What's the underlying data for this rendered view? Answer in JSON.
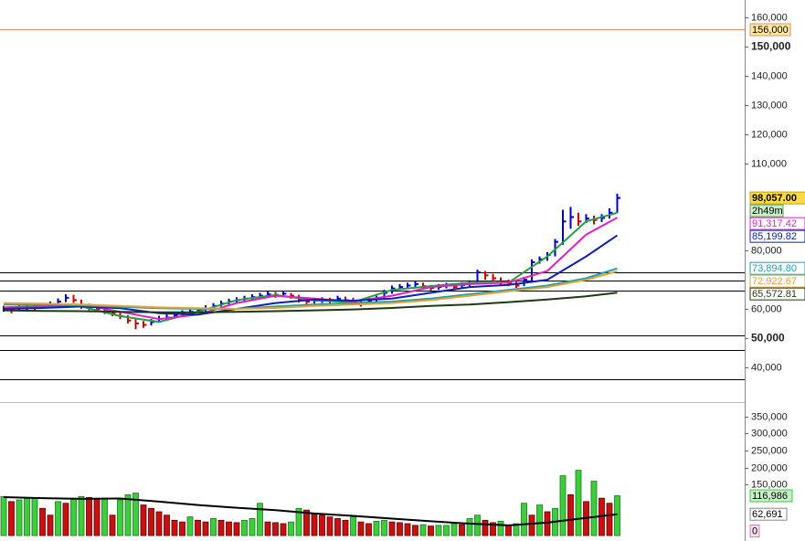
{
  "chart_data": [
    {
      "type": "ohlc",
      "ylim": [
        28000,
        166000
      ],
      "yticks": [
        {
          "value": 160000,
          "label": "160,000"
        },
        {
          "value": 150000,
          "label": "150,000"
        },
        {
          "value": 140000,
          "label": "140,000"
        },
        {
          "value": 130000,
          "label": "130,000"
        },
        {
          "value": 120000,
          "label": "120,000"
        },
        {
          "value": 110000,
          "label": "110,000"
        },
        {
          "value": 80000,
          "label": "80,000"
        },
        {
          "value": 60000,
          "label": "60,000"
        },
        {
          "value": 50000,
          "label": "50,000"
        },
        {
          "value": 40000,
          "label": "40,000"
        }
      ],
      "up_color": "#0000c8",
      "down_color": "#c80000",
      "high": [
        61000,
        60800,
        61200,
        61800,
        61500,
        62000,
        62500,
        63600,
        65000,
        64800,
        63200,
        61800,
        61200,
        60400,
        59600,
        58800,
        57800,
        56500,
        55800,
        56500,
        57600,
        58200,
        58800,
        59500,
        60000,
        60500,
        61200,
        62000,
        62800,
        63500,
        64000,
        64500,
        65000,
        65500,
        66000,
        65800,
        66200,
        65500,
        64800,
        63500,
        63800,
        64000,
        63800,
        64500,
        64200,
        63800,
        63000,
        63800,
        64500,
        66500,
        68000,
        68500,
        69000,
        69500,
        69000,
        68200,
        68500,
        69000,
        68500,
        69200,
        69800,
        73500,
        73000,
        72000,
        70800,
        70000,
        69500,
        71000,
        77000,
        78000,
        79500,
        84000,
        94000,
        95000,
        93000,
        92500,
        92000,
        92500,
        94500,
        99500
      ],
      "low": [
        59000,
        58500,
        59200,
        59500,
        59500,
        60000,
        60500,
        61200,
        62300,
        62000,
        60000,
        59500,
        59000,
        58200,
        57500,
        56500,
        55000,
        53000,
        53500,
        54300,
        55300,
        56200,
        56800,
        57500,
        58200,
        58700,
        59200,
        59800,
        60800,
        61500,
        62000,
        62500,
        63000,
        63500,
        64000,
        63800,
        64000,
        63500,
        62200,
        61500,
        61800,
        62000,
        61800,
        62500,
        62000,
        61500,
        60800,
        61600,
        62500,
        63500,
        65200,
        66400,
        67000,
        67500,
        66800,
        66300,
        66500,
        67000,
        66600,
        67200,
        67800,
        68500,
        70000,
        69500,
        68000,
        67800,
        67200,
        67800,
        69500,
        75500,
        76500,
        78000,
        82000,
        87500,
        88500,
        89500,
        89000,
        89800,
        91000,
        93000
      ],
      "close": [
        60000,
        59500,
        60200,
        60800,
        60300,
        61000,
        61500,
        62500,
        63800,
        63000,
        61000,
        60500,
        60000,
        59200,
        58500,
        57500,
        56000,
        55000,
        54500,
        55500,
        56500,
        57000,
        57800,
        58500,
        59000,
        59500,
        60000,
        61000,
        61800,
        62500,
        63000,
        63500,
        64000,
        64500,
        65000,
        64800,
        65200,
        64500,
        63000,
        62500,
        62800,
        63000,
        62700,
        63500,
        63000,
        62500,
        61800,
        62800,
        63500,
        65500,
        67000,
        67500,
        68000,
        68500,
        67800,
        67200,
        67500,
        68000,
        67500,
        68200,
        68800,
        72500,
        71500,
        70500,
        69000,
        68800,
        68000,
        70000,
        76000,
        77000,
        78500,
        83000,
        90000,
        91500,
        90000,
        91000,
        90500,
        91200,
        93000,
        98057
      ],
      "end_label": "98,057.00",
      "countdown": "2h49m",
      "alert": {
        "value": 156000,
        "label": "156,000"
      },
      "hlines": [
        72500,
        69700,
        66300,
        50900,
        45900,
        35900
      ],
      "series": [
        {
          "color": "#22a046",
          "x": [
            0,
            5,
            10,
            15,
            20,
            25,
            30,
            35,
            40,
            45,
            50,
            55,
            60,
            65,
            70,
            75,
            79
          ],
          "values": [
            60500,
            61000,
            60800,
            57500,
            55500,
            59000,
            63000,
            64800,
            62900,
            62300,
            66500,
            67800,
            69000,
            69000,
            78000,
            90000,
            93000
          ]
        },
        {
          "color": "#e020c0",
          "x": [
            0,
            5,
            10,
            15,
            20,
            25,
            30,
            35,
            40,
            45,
            50,
            55,
            60,
            65,
            70,
            75,
            79
          ],
          "values": [
            60300,
            60800,
            61500,
            59000,
            56500,
            58000,
            62000,
            64500,
            63500,
            62500,
            64500,
            67500,
            68500,
            69000,
            73000,
            85500,
            91317.42
          ],
          "end_label": "91,317.42"
        },
        {
          "color": "#1020b0",
          "x": [
            0,
            5,
            10,
            15,
            20,
            25,
            30,
            35,
            40,
            45,
            50,
            55,
            60,
            65,
            70,
            75,
            79
          ],
          "values": [
            60000,
            60300,
            60800,
            60200,
            58500,
            58000,
            60000,
            62000,
            63200,
            62800,
            63500,
            65500,
            67500,
            68200,
            70000,
            78000,
            85199.82
          ],
          "end_label": "85,199.82"
        },
        {
          "color": "#1aa0b0",
          "x": [
            0,
            5,
            10,
            15,
            20,
            25,
            30,
            35,
            40,
            45,
            50,
            55,
            60,
            65,
            70,
            75,
            79
          ],
          "values": [
            61500,
            61500,
            61200,
            60700,
            60200,
            60000,
            60000,
            60800,
            61500,
            62000,
            62500,
            63500,
            65000,
            66500,
            68000,
            70500,
            73894.8
          ],
          "end_label": "73,894.80"
        },
        {
          "color": "#e8a030",
          "x": [
            0,
            5,
            10,
            15,
            20,
            25,
            30,
            35,
            40,
            45,
            50,
            55,
            60,
            65,
            70,
            75,
            79
          ],
          "values": [
            62000,
            61800,
            61500,
            61000,
            60500,
            60200,
            60000,
            60300,
            61000,
            61500,
            62000,
            63000,
            64500,
            66000,
            67500,
            70000,
            72922.67
          ],
          "end_label": "72,922.67"
        },
        {
          "color": "#1e3a14",
          "x": [
            0,
            5,
            10,
            15,
            20,
            25,
            30,
            35,
            40,
            45,
            50,
            55,
            60,
            65,
            70,
            75,
            79
          ],
          "values": [
            59500,
            59300,
            59200,
            59000,
            58800,
            58800,
            59000,
            59200,
            59500,
            59800,
            60300,
            61000,
            61500,
            62300,
            63200,
            64300,
            65572.81
          ],
          "end_label": "65,572.81"
        }
      ]
    },
    {
      "type": "bar",
      "ylim": [
        -16000,
        390000
      ],
      "yticks": [
        {
          "value": 350000,
          "label": "350,000"
        },
        {
          "value": 300000,
          "label": "300,000"
        },
        {
          "value": 250000,
          "label": "250,000"
        },
        {
          "value": 200000,
          "label": "200,000"
        },
        {
          "value": 150000,
          "label": "150,000"
        }
      ],
      "up_color": "#3ccc3c",
      "down_color": "#c81010",
      "values": [
        115000,
        100000,
        105000,
        110000,
        112000,
        80000,
        60000,
        100000,
        95000,
        110000,
        115000,
        112000,
        108000,
        110000,
        60000,
        105000,
        120000,
        125000,
        90000,
        80000,
        70000,
        60000,
        45000,
        40000,
        55000,
        45000,
        40000,
        50000,
        45000,
        40000,
        38000,
        45000,
        50000,
        95000,
        40000,
        38000,
        35000,
        40000,
        80000,
        75000,
        65000,
        60000,
        55000,
        50000,
        45000,
        55000,
        40000,
        35000,
        42000,
        45000,
        40000,
        38000,
        35000,
        30000,
        32000,
        28000,
        30000,
        30000,
        35000,
        32000,
        50000,
        60000,
        45000,
        38000,
        42000,
        30000,
        35000,
        95000,
        60000,
        90000,
        70000,
        80000,
        176000,
        120000,
        192000,
        100000,
        160000,
        110000,
        95000,
        116986
      ],
      "end_label": "116,986",
      "zero_label": {
        "value": 0,
        "label": "0"
      },
      "series": [
        {
          "color": "#000000",
          "x": [
            0,
            5,
            10,
            15,
            20,
            25,
            30,
            35,
            40,
            45,
            50,
            55,
            60,
            65,
            70,
            75,
            79
          ],
          "values": [
            113000,
            110000,
            108000,
            109000,
            100000,
            90000,
            82000,
            75000,
            65000,
            58000,
            50000,
            42000,
            35000,
            30000,
            38000,
            52000,
            62691
          ],
          "end_label": "62,691"
        }
      ]
    }
  ]
}
